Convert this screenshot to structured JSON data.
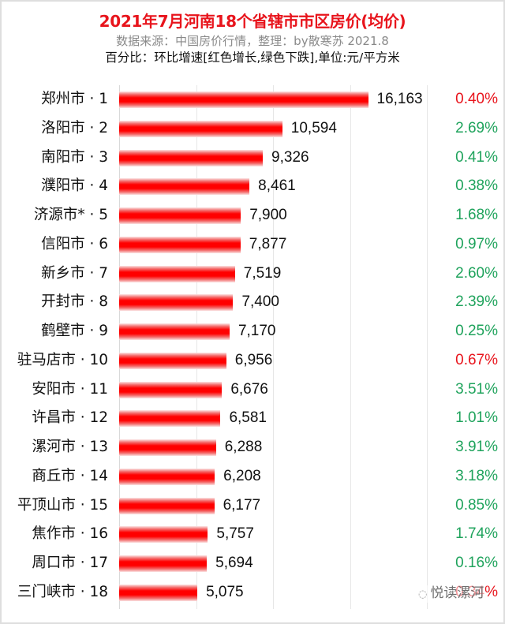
{
  "header": {
    "title": "2021年7月河南18个省辖市市区房价(均价)",
    "subtitle": "数据来源：中国房价行情，整理：by散寒苏 2021.8",
    "note": "百分比：环比增速[红色增长,绿色下跌],单位:元/平方米"
  },
  "colors": {
    "title": "#e8141c",
    "bar": "#ff0000",
    "increase": "#e8141c",
    "decrease": "#1fa35c",
    "grid": "#e6e6e6"
  },
  "watermark": {
    "icon": "wechat-icon",
    "text": "悦读漯河"
  },
  "chart_data": {
    "type": "bar",
    "orientation": "horizontal",
    "title": "2021年7月河南18个省辖市市区房价(均价)",
    "subtitle": "数据来源：中国房价行情，整理：by散寒苏 2021.8",
    "annotation": "百分比：环比增速[红色增长,绿色下跌],单位:元/平方米",
    "xlabel": "",
    "ylabel": "",
    "unit": "元/平方米",
    "xlim": [
      0,
      20000
    ],
    "grid": true,
    "grid_interval": 5000,
    "legend": null,
    "categories": [
      "郑州市 · 1",
      "洛阳市 · 2",
      "南阳市 · 3",
      "濮阳市 · 4",
      "济源市* · 5",
      "信阳市 · 6",
      "新乡市 · 7",
      "开封市 · 8",
      "鹤壁市 · 9",
      "驻马店市 · 10",
      "安阳市 · 11",
      "许昌市 · 12",
      "漯河市 · 13",
      "商丘市 · 14",
      "平顶山市 · 15",
      "焦作市 · 16",
      "周口市 · 17",
      "三门峡市 · 18"
    ],
    "values": [
      16163,
      10594,
      9326,
      8461,
      7900,
      7877,
      7519,
      7400,
      7170,
      6956,
      6676,
      6581,
      6288,
      6208,
      6177,
      5757,
      5694,
      5075
    ],
    "value_labels": [
      "16,163",
      "10,594",
      "9,326",
      "8,461",
      "7,900",
      "7,877",
      "7,519",
      "7,400",
      "7,170",
      "6,956",
      "6,676",
      "6,581",
      "6,288",
      "6,208",
      "6,177",
      "5,757",
      "5,694",
      "5,075"
    ],
    "mom_change": [
      "0.40%",
      "2.69%",
      "0.41%",
      "0.38%",
      "1.68%",
      "0.97%",
      "2.60%",
      "2.39%",
      "0.25%",
      "0.67%",
      "3.51%",
      "1.01%",
      "3.91%",
      "3.18%",
      "0.85%",
      "1.74%",
      "0.16%",
      "0.34%"
    ],
    "mom_direction": [
      "up",
      "down",
      "down",
      "down",
      "down",
      "down",
      "down",
      "down",
      "down",
      "up",
      "down",
      "down",
      "down",
      "down",
      "down",
      "down",
      "down",
      "up"
    ]
  }
}
